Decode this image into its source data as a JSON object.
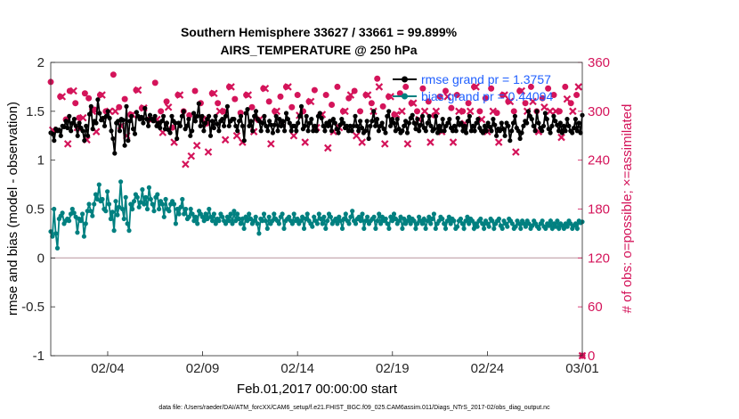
{
  "chart_data": {
    "type": "line",
    "title_line1": "Southern Hemisphere 33627 / 33661 = 99.899%",
    "title_line2": "AIRS_TEMPERATURE @ 250 hPa",
    "xlabel": "Feb.01,2017 00:00:00 start",
    "ylabel_left": "rmse and bias (model - observation)",
    "ylabel_right": "# of obs: o=possible; ×=assimilated",
    "xlim": [
      0,
      28
    ],
    "ylim_left": [
      -1,
      2
    ],
    "ylim_right": [
      0,
      360
    ],
    "x_ticks": [
      {
        "x": 3,
        "label": "02/04"
      },
      {
        "x": 8,
        "label": "02/09"
      },
      {
        "x": 13,
        "label": "02/14"
      },
      {
        "x": 18,
        "label": "02/19"
      },
      {
        "x": 23,
        "label": "02/24"
      },
      {
        "x": 28,
        "label": "03/01"
      }
    ],
    "y_ticks_left": [
      {
        "v": 2,
        "label": "2"
      },
      {
        "v": 1.5,
        "label": "1.5"
      },
      {
        "v": 1,
        "label": "1"
      },
      {
        "v": 0.5,
        "label": "0.5"
      },
      {
        "v": 0,
        "label": "0"
      },
      {
        "v": -0.5,
        "label": "-0.5"
      },
      {
        "v": -1,
        "label": "-1"
      }
    ],
    "y_ticks_right": [
      {
        "v": 360,
        "label": "360"
      },
      {
        "v": 300,
        "label": "300"
      },
      {
        "v": 240,
        "label": "240"
      },
      {
        "v": 180,
        "label": "180"
      },
      {
        "v": 120,
        "label": "120"
      },
      {
        "v": 60,
        "label": "60"
      },
      {
        "v": 0,
        "label": "0"
      }
    ],
    "dt": 0.25,
    "series": [
      {
        "name": "rmse grand pr = 1.3757",
        "axis": "left",
        "color": "#000000",
        "values": [
          1.28,
          1.27,
          1.2,
          1.32,
          1.3,
          1.31,
          1.25,
          1.35,
          1.34,
          1.4,
          1.33,
          1.45,
          1.3,
          1.38,
          1.42,
          1.35,
          1.25,
          1.38,
          1.33,
          1.3,
          1.2,
          1.35,
          1.25,
          1.47,
          1.55,
          1.32,
          1.4,
          1.38,
          1.62,
          1.48,
          1.41,
          1.43,
          1.35,
          1.45,
          1.5,
          1.43,
          1.3,
          1.22,
          1.07,
          1.38,
          1.4,
          1.3,
          1.42,
          1.41,
          1.15,
          1.55,
          1.2,
          1.4,
          1.45,
          1.32,
          1.27,
          1.49,
          1.45,
          1.42,
          1.44,
          1.38,
          1.53,
          1.42,
          1.35,
          1.46,
          1.42,
          1.4,
          1.45,
          1.35,
          1.38,
          1.33,
          1.4,
          1.45,
          1.32,
          1.38,
          1.31,
          1.28,
          1.45,
          1.4,
          1.38,
          1.22,
          1.38,
          1.35,
          1.45,
          1.5,
          1.32,
          1.35,
          1.42,
          1.25,
          1.3,
          1.48,
          1.4,
          1.45,
          1.58,
          1.35,
          1.45,
          1.3,
          1.38,
          1.42,
          1.45,
          1.25,
          1.4,
          1.33,
          1.45,
          1.37,
          1.3,
          1.4,
          1.42,
          1.35,
          1.45,
          1.55,
          1.35,
          1.4,
          1.42,
          1.42,
          1.35,
          1.3,
          1.4,
          1.45,
          1.35,
          1.2,
          1.48,
          1.52,
          1.35,
          1.4,
          1.3,
          1.45,
          1.5,
          1.42,
          1.4,
          1.3,
          1.38,
          1.45,
          1.35,
          1.3,
          1.4,
          1.36,
          1.28,
          1.36,
          1.45,
          1.3,
          1.42,
          1.35,
          1.4,
          1.3,
          1.48,
          1.42,
          1.38,
          1.3,
          1.35,
          1.35,
          1.3,
          1.38,
          1.45,
          1.55,
          1.32,
          1.35,
          1.45,
          1.3,
          1.38,
          1.42,
          1.3,
          1.35,
          1.3,
          1.45,
          1.48,
          1.43,
          1.35,
          1.3,
          1.38,
          1.35,
          1.4,
          1.3,
          1.42,
          1.38,
          1.32,
          1.28,
          1.36,
          1.42,
          1.38,
          1.33,
          1.35,
          1.3,
          1.35,
          1.3,
          1.35,
          1.45,
          1.35,
          1.3,
          1.4,
          1.33,
          1.28,
          1.3,
          1.4,
          1.22,
          1.35,
          1.4,
          1.5,
          1.35,
          1.42,
          1.3,
          1.35,
          1.38,
          1.32,
          1.28,
          1.45,
          1.5,
          1.35,
          1.42,
          1.38,
          1.3,
          1.42,
          1.32,
          1.28,
          1.3,
          1.35,
          1.4,
          1.28,
          1.38,
          1.43,
          1.46,
          1.38,
          1.32,
          1.42,
          1.3,
          1.36,
          1.45,
          1.33,
          1.3,
          1.38,
          1.45,
          1.35,
          1.3,
          1.32,
          1.45,
          1.28,
          1.35,
          1.3,
          1.42,
          1.3,
          1.35,
          1.38,
          1.42,
          1.33,
          1.3,
          1.35,
          1.3,
          1.43,
          1.36,
          1.38,
          1.3,
          1.35,
          1.28,
          1.4,
          1.45,
          1.3,
          1.35,
          1.3,
          1.38,
          1.42,
          1.33,
          1.3,
          1.28,
          1.35,
          1.3,
          1.38,
          1.34,
          1.3,
          1.42,
          1.36,
          1.25,
          1.32,
          1.3,
          1.38,
          1.32,
          1.25,
          1.38,
          1.35,
          1.2,
          1.3,
          1.38,
          1.45,
          1.33,
          1.3,
          1.22,
          1.28,
          1.35,
          1.4,
          1.38,
          1.5,
          1.45,
          1.42,
          1.35,
          1.3,
          1.5,
          1.38,
          1.33,
          1.3,
          1.35,
          1.48,
          1.42,
          1.32,
          1.28,
          1.35,
          1.45,
          1.4,
          1.36,
          1.3,
          1.38,
          1.28,
          1.35,
          1.3,
          1.42,
          1.35,
          1.3,
          1.28,
          1.33,
          1.42,
          1.3,
          1.38,
          1.28,
          1.46
        ]
      },
      {
        "name": "bias grand pr = 0.44094",
        "axis": "left",
        "color": "#008080",
        "values": [
          0.27,
          0.22,
          0.5,
          0.25,
          0.1,
          0.4,
          0.43,
          0.46,
          0.35,
          0.38,
          0.4,
          0.38,
          0.45,
          0.5,
          0.46,
          0.42,
          0.26,
          0.4,
          0.38,
          0.45,
          0.22,
          0.35,
          0.48,
          0.55,
          0.48,
          0.43,
          0.55,
          0.65,
          0.6,
          0.75,
          0.58,
          0.6,
          0.5,
          0.48,
          0.68,
          0.55,
          0.4,
          0.47,
          0.28,
          0.58,
          0.44,
          0.52,
          0.78,
          0.5,
          0.4,
          0.62,
          0.35,
          0.28,
          0.55,
          0.5,
          0.58,
          0.65,
          0.62,
          0.52,
          0.57,
          0.7,
          0.55,
          0.62,
          0.5,
          0.72,
          0.6,
          0.55,
          0.48,
          0.62,
          0.65,
          0.5,
          0.58,
          0.55,
          0.42,
          0.6,
          0.5,
          0.48,
          0.55,
          0.58,
          0.55,
          0.35,
          0.5,
          0.45,
          0.52,
          0.6,
          0.45,
          0.5,
          0.4,
          0.42,
          0.5,
          0.45,
          0.38,
          0.42,
          0.35,
          0.48,
          0.45,
          0.42,
          0.38,
          0.45,
          0.4,
          0.5,
          0.42,
          0.38,
          0.45,
          0.35,
          0.4,
          0.38,
          0.45,
          0.42,
          0.38,
          0.35,
          0.42,
          0.38,
          0.45,
          0.35,
          0.48,
          0.38,
          0.45,
          0.4,
          0.35,
          0.4,
          0.3,
          0.42,
          0.38,
          0.45,
          0.4,
          0.35,
          0.38,
          0.42,
          0.35,
          0.25,
          0.4,
          0.38,
          0.45,
          0.38,
          0.3,
          0.42,
          0.35,
          0.38,
          0.45,
          0.4,
          0.38,
          0.35,
          0.42,
          0.45,
          0.3,
          0.38,
          0.4,
          0.42,
          0.38,
          0.35,
          0.45,
          0.38,
          0.4,
          0.35,
          0.38,
          0.42,
          0.3,
          0.4,
          0.45,
          0.38,
          0.35,
          0.32,
          0.42,
          0.38,
          0.35,
          0.45,
          0.4,
          0.35,
          0.42,
          0.3,
          0.38,
          0.45,
          0.42,
          0.35,
          0.38,
          0.4,
          0.35,
          0.42,
          0.38,
          0.3,
          0.4,
          0.45,
          0.38,
          0.35,
          0.42,
          0.48,
          0.38,
          0.35,
          0.4,
          0.42,
          0.38,
          0.45,
          0.3,
          0.38,
          0.42,
          0.35,
          0.38,
          0.4,
          0.42,
          0.3,
          0.38,
          0.45,
          0.35,
          0.42,
          0.38,
          0.4,
          0.35,
          0.3,
          0.42,
          0.38,
          0.45,
          0.4,
          0.35,
          0.38,
          0.42,
          0.3,
          0.4,
          0.35,
          0.38,
          0.42,
          0.35,
          0.4,
          0.38,
          0.3,
          0.35,
          0.42,
          0.38,
          0.35,
          0.4,
          0.3,
          0.38,
          0.42,
          0.35,
          0.4,
          0.45,
          0.3,
          0.35,
          0.38,
          0.42,
          0.4,
          0.35,
          0.3,
          0.38,
          0.42,
          0.35,
          0.4,
          0.38,
          0.3,
          0.32,
          0.38,
          0.4,
          0.35,
          0.3,
          0.38,
          0.42,
          0.35,
          0.4,
          0.38,
          0.3,
          0.35,
          0.32,
          0.38,
          0.4,
          0.35,
          0.3,
          0.38,
          0.35,
          0.32,
          0.4,
          0.38,
          0.3,
          0.35,
          0.38,
          0.4,
          0.33,
          0.3,
          0.38,
          0.35,
          0.32,
          0.4,
          0.38,
          0.35,
          0.3,
          0.32,
          0.38,
          0.35,
          0.3,
          0.38,
          0.35,
          0.32,
          0.38,
          0.35,
          0.3,
          0.33,
          0.38,
          0.35,
          0.32,
          0.3,
          0.35,
          0.38,
          0.32,
          0.3,
          0.35,
          0.33,
          0.38,
          0.3,
          0.35,
          0.32,
          0.38,
          0.3,
          0.35,
          0.33,
          0.3,
          0.35,
          0.32,
          0.38,
          0.35,
          0.3,
          0.33,
          0.35,
          0.3,
          0.38,
          0.36,
          0.37
        ]
      },
      {
        "name": "obs possible",
        "axis": "right",
        "color": "#d4145a",
        "marker": "o",
        "x": [
          0.0,
          0.5,
          0.8,
          1.0,
          1.3,
          1.5,
          1.8,
          2.0,
          2.3,
          2.6,
          2.9,
          3.3,
          3.6,
          3.9,
          4.2,
          4.5,
          4.8,
          5.2,
          5.5,
          5.8,
          6.1,
          6.4,
          6.7,
          7.0,
          7.3,
          7.6,
          7.9,
          8.2,
          8.5,
          8.8,
          9.1,
          9.4,
          9.7,
          10.0,
          10.3,
          10.6,
          10.9,
          11.2,
          11.5,
          11.8,
          12.1,
          12.4,
          12.7,
          13.0,
          13.3,
          13.6,
          13.9,
          14.2,
          14.5,
          14.8,
          15.1,
          15.4,
          15.7,
          16.0,
          16.3,
          16.6,
          16.9,
          17.2,
          17.5,
          17.8,
          18.1,
          18.4,
          18.7,
          19.0,
          19.3,
          19.6,
          19.9,
          20.2,
          20.5,
          20.8,
          21.1,
          21.4,
          21.7,
          22.0,
          22.3,
          22.6,
          22.9,
          23.2,
          23.5,
          23.8,
          24.1,
          24.4,
          24.7,
          25.0,
          25.3,
          25.6,
          25.9,
          26.2,
          26.5,
          26.8,
          27.1,
          27.4,
          27.7,
          28.0
        ],
        "values": [
          336,
          318,
          290,
          325,
          310,
          292,
          322,
          316,
          302,
          320,
          300,
          345,
          305,
          315,
          296,
          326,
          304,
          290,
          335,
          300,
          312,
          280,
          320,
          300,
          295,
          325,
          310,
          285,
          322,
          310,
          300,
          330,
          315,
          298,
          320,
          305,
          290,
          328,
          312,
          300,
          318,
          330,
          305,
          320,
          300,
          312,
          326,
          296,
          320,
          308,
          330,
          300,
          316,
          325,
          300,
          320,
          310,
          340,
          306,
          318,
          296,
          322,
          330,
          310,
          300,
          328,
          312,
          295,
          318,
          325,
          304,
          320,
          300,
          310,
          330,
          300,
          316,
          328,
          298,
          320,
          312,
          300,
          325,
          310,
          330,
          300,
          316,
          328,
          320,
          300,
          330,
          310,
          320,
          0
        ]
      },
      {
        "name": "obs assimilated",
        "axis": "right",
        "color": "#d4145a",
        "marker": "x",
        "x": [
          0.1,
          0.6,
          0.9,
          1.2,
          1.4,
          1.7,
          1.9,
          2.2,
          2.4,
          2.7,
          3.1,
          3.4,
          3.7,
          4.0,
          4.3,
          4.6,
          4.9,
          5.3,
          5.6,
          5.9,
          6.2,
          6.5,
          6.8,
          7.1,
          7.4,
          7.7,
          8.0,
          8.3,
          8.6,
          8.9,
          9.2,
          9.5,
          9.8,
          10.1,
          10.4,
          10.7,
          11.0,
          11.3,
          11.6,
          11.9,
          12.2,
          12.5,
          12.8,
          13.1,
          13.4,
          13.7,
          14.0,
          14.3,
          14.6,
          14.9,
          15.2,
          15.5,
          15.8,
          16.1,
          16.4,
          16.7,
          17.0,
          17.3,
          17.6,
          17.9,
          18.2,
          18.5,
          18.8,
          19.1,
          19.4,
          19.7,
          20.0,
          20.3,
          20.6,
          20.9,
          21.2,
          21.5,
          21.8,
          22.1,
          22.4,
          22.7,
          23.0,
          23.3,
          23.6,
          23.9,
          24.2,
          24.5,
          24.8,
          25.1,
          25.4,
          25.7,
          26.0,
          26.3,
          26.6,
          26.9,
          27.2,
          27.5,
          27.8,
          28.0
        ],
        "values": [
          277,
          318,
          260,
          325,
          280,
          292,
          265,
          300,
          275,
          320,
          300,
          300,
          282,
          270,
          296,
          326,
          304,
          290,
          290,
          274,
          305,
          262,
          320,
          235,
          245,
          258,
          290,
          250,
          322,
          300,
          265,
          330,
          270,
          262,
          320,
          275,
          290,
          328,
          260,
          300,
          285,
          330,
          270,
          295,
          262,
          312,
          280,
          296,
          255,
          275,
          280,
          300,
          320,
          270,
          262,
          320,
          300,
          330,
          260,
          318,
          296,
          300,
          260,
          310,
          290,
          300,
          262,
          300,
          275,
          318,
          262,
          300,
          285,
          300,
          330,
          290,
          275,
          300,
          262,
          320,
          312,
          250,
          325,
          300,
          312,
          275,
          305,
          300,
          300,
          268,
          315,
          300,
          330,
          0
        ]
      }
    ],
    "legend": [
      {
        "label": "rmse grand pr = 1.3757",
        "color": "#000000"
      },
      {
        "label": "bias grand pr = 0.44094",
        "color": "#008080"
      }
    ],
    "legend_text_color": "#1f5fff",
    "footer": "data file: /Users/raeder/DAI/ATM_forcXX/CAM6_setup/f.e21.FHIST_BGC.f09_025.CAM6assim.011/Diags_NTrS_2017-02/obs_diag_output.nc"
  }
}
